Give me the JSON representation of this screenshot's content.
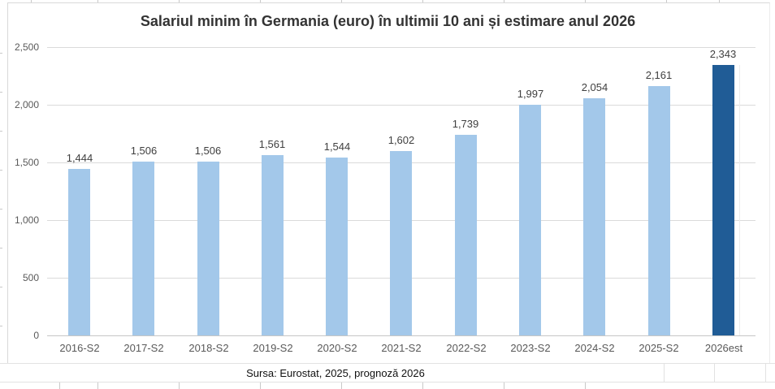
{
  "chart_data": {
    "type": "bar",
    "title": "Salariul minim în Germania (euro) în ultimii 10 ani și estimare anul 2026",
    "categories": [
      "2016-S2",
      "2017-S2",
      "2018-S2",
      "2019-S2",
      "2020-S2",
      "2021-S2",
      "2022-S2",
      "2023-S2",
      "2024-S2",
      "2025-S2",
      "2026est"
    ],
    "values": [
      1444,
      1506,
      1506,
      1561,
      1544,
      1602,
      1739,
      1997,
      2054,
      2161,
      2343
    ],
    "value_labels": [
      "1,444",
      "1,506",
      "1,506",
      "1,561",
      "1,544",
      "1,602",
      "1,739",
      "1,997",
      "2,054",
      "2,161",
      "2,343"
    ],
    "estimate_index": 10,
    "xlabel": "",
    "ylabel": "",
    "ylim": [
      0,
      2500
    ],
    "y_tick_step": 500,
    "y_tick_labels": [
      "0",
      "500",
      "1,000",
      "1,500",
      "2,000",
      "2,500"
    ],
    "grid": true,
    "legend": "none",
    "source_note": "Sursa: Eurostat, 2025, prognoză 2026",
    "colors": {
      "bar": "#A3C8EA",
      "bar_estimate": "#205C96",
      "gridline": "#DADADA",
      "axis_line": "#C6C6C6",
      "value_label": "#3F3F3F",
      "tick_label": "#595959",
      "title": "#333333"
    }
  }
}
